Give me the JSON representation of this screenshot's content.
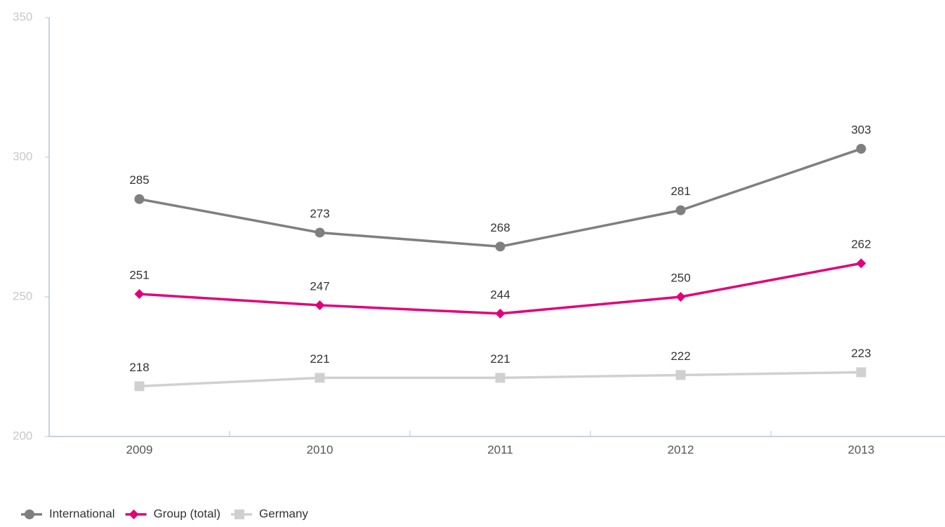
{
  "chart_data": {
    "type": "line",
    "categories": [
      "2009",
      "2010",
      "2011",
      "2012",
      "2013"
    ],
    "series": [
      {
        "name": "International",
        "color": "#7f7f7f",
        "marker": "circle",
        "values": [
          285,
          273,
          268,
          281,
          303
        ]
      },
      {
        "name": "Group (total)",
        "color": "#e2007a",
        "marker": "diamond",
        "values": [
          251,
          247,
          244,
          250,
          262
        ]
      },
      {
        "name": "Germany",
        "color": "#d0d0d0",
        "marker": "square",
        "values": [
          218,
          221,
          221,
          222,
          223
        ]
      }
    ],
    "ylim": [
      200,
      350
    ],
    "yticks": [
      200,
      250,
      300,
      350
    ],
    "grid": false,
    "legend": "bottom-left"
  }
}
